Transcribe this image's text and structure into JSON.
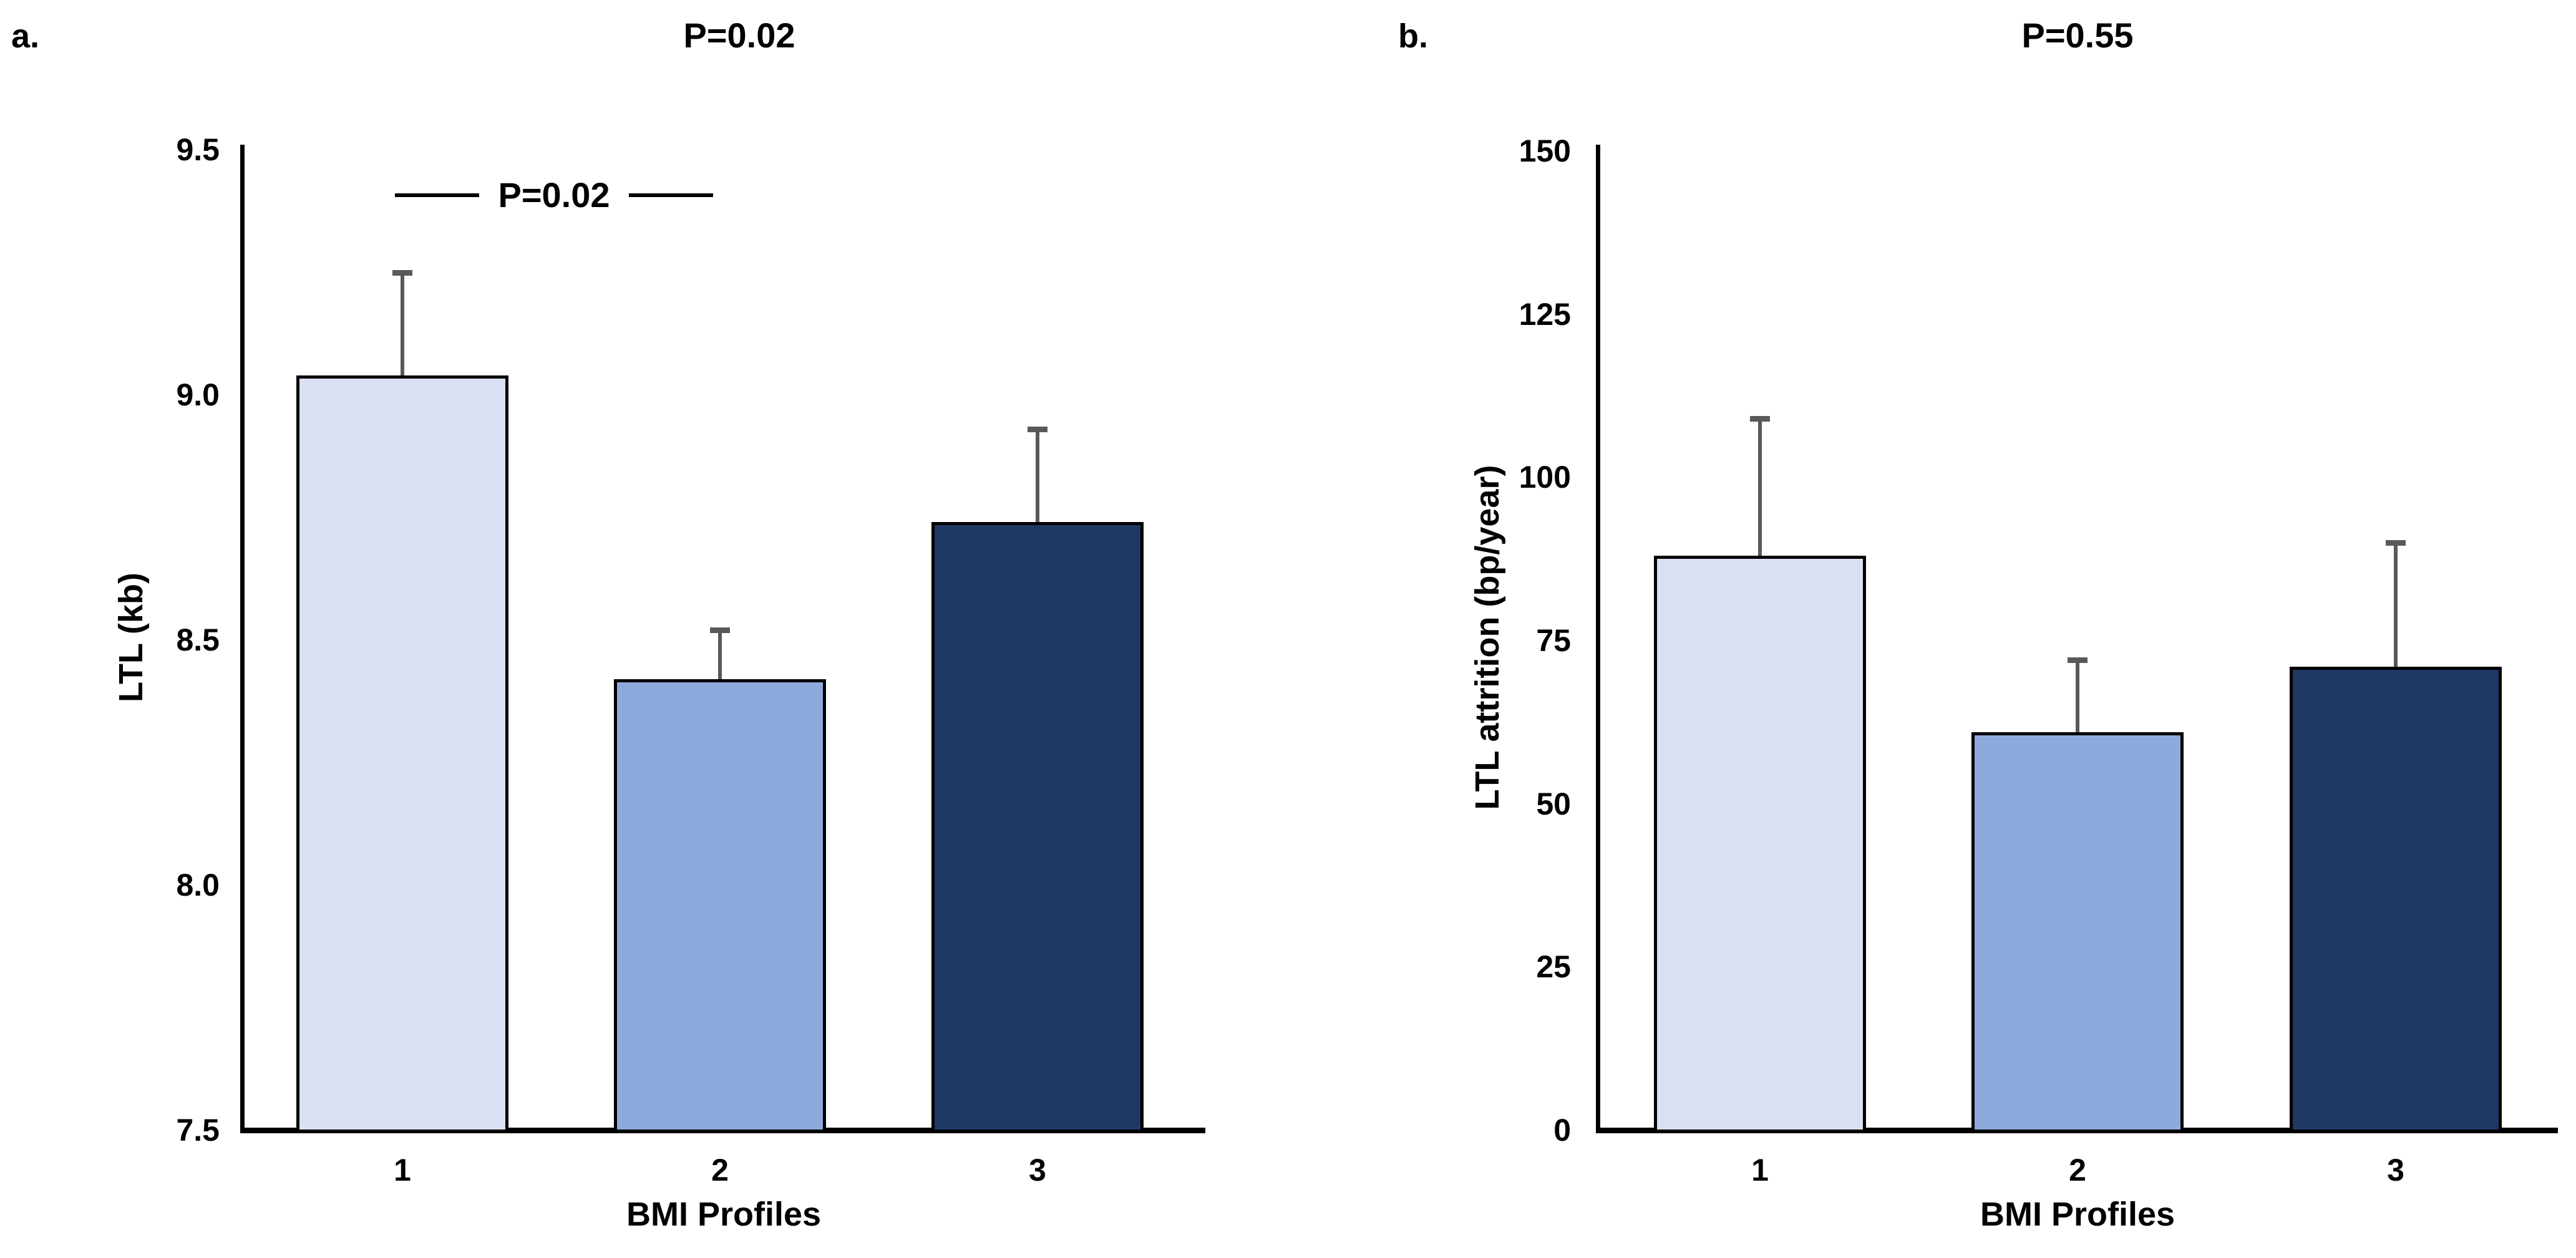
{
  "figure_title": "",
  "colors": {
    "bar_1_fill": "#d9e1f2",
    "bar_2_fill": "#8ea9dc",
    "bar_3_fill": "#1f3864",
    "bar_border": "#000000",
    "error_bar": "#595959",
    "axis": "#000000",
    "background": "#ffffff"
  },
  "chart_data": [
    {
      "type": "bar",
      "panel_label": "a.",
      "title": "P=0.02",
      "categories": [
        "1",
        "2",
        "3"
      ],
      "values": [
        9.04,
        8.42,
        8.74
      ],
      "error_top_values": [
        9.25,
        8.52,
        8.93
      ],
      "xlabel": "BMI Profiles",
      "ylabel": "LTL (kb)",
      "ylim": [
        7.5,
        9.5
      ],
      "yticks": [
        9.5,
        9.0,
        8.5,
        8.0,
        7.5
      ],
      "ytick_labels": [
        "9.5",
        "9.0",
        "8.5",
        "8.0",
        "7.5"
      ],
      "annotation": {
        "text": "P=0.02",
        "between_bars": [
          "1",
          "2"
        ]
      },
      "bar_colors": [
        "#d9e1f2",
        "#8ea9dc",
        "#1f3864"
      ],
      "grid": false,
      "legend": null
    },
    {
      "type": "bar",
      "panel_label": "b.",
      "title": "P=0.55",
      "categories": [
        "1",
        "2",
        "3"
      ],
      "values": [
        88,
        61,
        71
      ],
      "error_top_values": [
        109,
        72,
        90
      ],
      "xlabel": "BMI Profiles",
      "ylabel": "LTL attrition (bp/year)",
      "ylim": [
        0,
        150
      ],
      "yticks": [
        150,
        125,
        100,
        75,
        50,
        25,
        0
      ],
      "ytick_labels": [
        "150",
        "125",
        "100",
        "75",
        "50",
        "25",
        "0"
      ],
      "annotation": null,
      "bar_colors": [
        "#d9e1f2",
        "#8ea9dc",
        "#1f3864"
      ],
      "grid": false,
      "legend": null
    }
  ]
}
